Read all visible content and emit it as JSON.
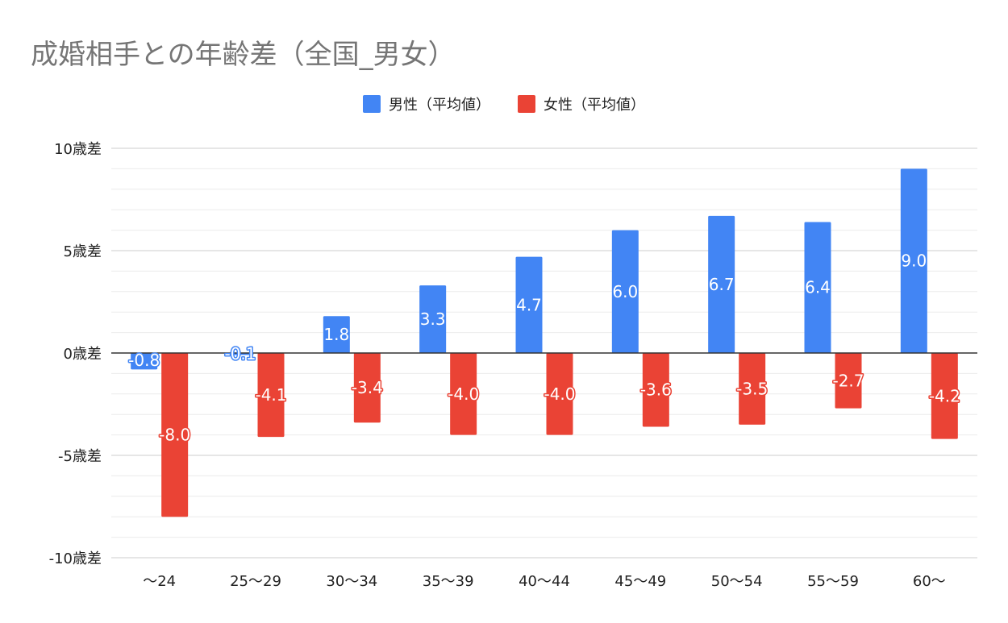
{
  "chart_data": {
    "type": "bar",
    "title": "成婚相手との年齢差（全国_男女）",
    "categories": [
      "～24",
      "25～29",
      "30～34",
      "35～39",
      "40～44",
      "45～49",
      "50～54",
      "55～59",
      "60～"
    ],
    "series": [
      {
        "name": "男性（平均値）",
        "color": "#4285f4",
        "values": [
          -0.8,
          -0.1,
          1.8,
          3.3,
          4.7,
          6.0,
          6.7,
          6.4,
          9.0
        ]
      },
      {
        "name": "女性（平均値）",
        "color": "#ea4335",
        "values": [
          -8.0,
          -4.1,
          -3.4,
          -4.0,
          -4.0,
          -3.6,
          -3.5,
          -2.7,
          -4.2
        ]
      }
    ],
    "data_labels": [
      [
        "-0.8",
        "-0.1",
        "1.8",
        "3.3",
        "4.7",
        "6.0",
        "6.7",
        "6.4",
        "9.0"
      ],
      [
        "-8.0",
        "-4.1",
        "-3.4",
        "-4.0",
        "-4.0",
        "-3.6",
        "-3.5",
        "-2.7",
        "-4.2"
      ]
    ],
    "y_ticks": [
      {
        "value": 10,
        "label": "10歳差"
      },
      {
        "value": 5,
        "label": "5歳差"
      },
      {
        "value": 0,
        "label": "0歳差"
      },
      {
        "value": -5,
        "label": "-5歳差"
      },
      {
        "value": -10,
        "label": "-10歳差"
      }
    ],
    "ylim": [
      -10,
      10
    ],
    "grid": true,
    "legend_position": "top-center"
  }
}
